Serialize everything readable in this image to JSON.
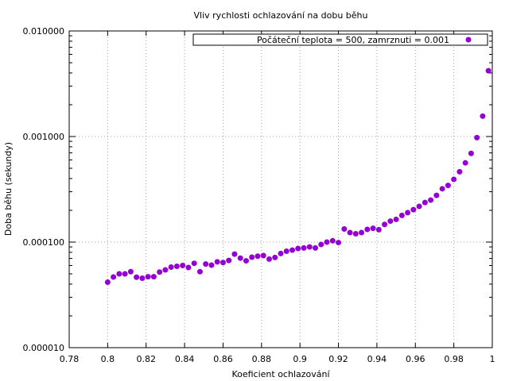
{
  "chart_data": {
    "type": "scatter",
    "title": "Vliv rychlosti ochlazování na dobu běhu",
    "xlabel": "Koeficient ochlazování",
    "ylabel": "Doba běhu (sekundy)",
    "xlim": [
      0.78,
      1.0
    ],
    "ylim": [
      1e-05,
      0.01
    ],
    "yscale": "log",
    "grid": true,
    "legend_position": "top-right",
    "x_ticks": [
      "0.78",
      "0.8",
      "0.82",
      "0.84",
      "0.86",
      "0.88",
      "0.9",
      "0.92",
      "0.94",
      "0.96",
      "0.98",
      "1"
    ],
    "x_tick_values": [
      0.78,
      0.8,
      0.82,
      0.84,
      0.86,
      0.88,
      0.9,
      0.92,
      0.94,
      0.96,
      0.98,
      1.0
    ],
    "y_ticks": [
      "0.000010",
      "0.000100",
      "0.001000",
      "0.010000"
    ],
    "y_tick_values": [
      1e-05,
      0.0001,
      0.001,
      0.01
    ],
    "series": [
      {
        "name": "Počáteční teplota = 500, zamrznuti = 0.001",
        "color": "#9400d3",
        "x": [
          0.8,
          0.803,
          0.806,
          0.809,
          0.812,
          0.815,
          0.818,
          0.821,
          0.824,
          0.827,
          0.83,
          0.833,
          0.836,
          0.839,
          0.842,
          0.845,
          0.848,
          0.851,
          0.854,
          0.857,
          0.86,
          0.863,
          0.866,
          0.869,
          0.872,
          0.875,
          0.878,
          0.881,
          0.884,
          0.887,
          0.89,
          0.893,
          0.896,
          0.899,
          0.902,
          0.905,
          0.908,
          0.911,
          0.914,
          0.917,
          0.92,
          0.923,
          0.926,
          0.929,
          0.932,
          0.935,
          0.938,
          0.941,
          0.944,
          0.947,
          0.95,
          0.953,
          0.956,
          0.959,
          0.962,
          0.965,
          0.968,
          0.971,
          0.974,
          0.977,
          0.98,
          0.983,
          0.986,
          0.989,
          0.992,
          0.995,
          0.998
        ],
        "y": [
          4.17e-05,
          4.67e-05,
          5e-05,
          5e-05,
          5.25e-05,
          4.65e-05,
          4.55e-05,
          4.7e-05,
          4.7e-05,
          5.2e-05,
          5.45e-05,
          5.8e-05,
          5.9e-05,
          6e-05,
          5.75e-05,
          6.3e-05,
          5.25e-05,
          6.2e-05,
          6.05e-05,
          6.5e-05,
          6.4e-05,
          6.7e-05,
          7.7e-05,
          7.05e-05,
          6.65e-05,
          7.2e-05,
          7.35e-05,
          7.45e-05,
          6.9e-05,
          7.15e-05,
          7.8e-05,
          8.2e-05,
          8.4e-05,
          8.7e-05,
          8.8e-05,
          9e-05,
          8.8e-05,
          9.5e-05,
          0.0001,
          0.000103,
          9.9e-05,
          0.000133,
          0.000123,
          0.00012,
          0.000123,
          0.000132,
          0.000135,
          0.000131,
          0.000147,
          0.000158,
          0.000164,
          0.000179,
          0.00019,
          0.000203,
          0.000218,
          0.000237,
          0.00025,
          0.000277,
          0.00032,
          0.000344,
          0.000393,
          0.000464,
          0.000563,
          0.000692,
          0.000977,
          0.00156,
          0.0042
        ]
      }
    ]
  }
}
